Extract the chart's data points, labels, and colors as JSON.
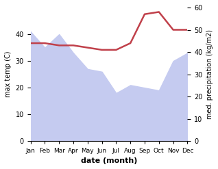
{
  "months": [
    "Jan",
    "Feb",
    "Mar",
    "Apr",
    "May",
    "Jun",
    "Jul",
    "Aug",
    "Sep",
    "Oct",
    "Nov",
    "Dec"
  ],
  "x": [
    0,
    1,
    2,
    3,
    4,
    5,
    6,
    7,
    8,
    9,
    10,
    11
  ],
  "max_temp": [
    41,
    35,
    40,
    33,
    27,
    26,
    18,
    21,
    20,
    19,
    30,
    33
  ],
  "precipitation": [
    44,
    44,
    43,
    43,
    42,
    41,
    41,
    44,
    57,
    58,
    50,
    50
  ],
  "temp_color": "#c0404a",
  "precip_color": "#aab4e8",
  "precip_fill_color": "#c5cbf0",
  "title": "",
  "xlabel": "date (month)",
  "ylabel_left": "max temp (C)",
  "ylabel_right": "med. precipitation (kg/m2)",
  "ylim_left": [
    0,
    50
  ],
  "ylim_right": [
    0,
    60
  ],
  "yticks_left": [
    0,
    10,
    20,
    30,
    40
  ],
  "yticks_right": [
    0,
    10,
    20,
    30,
    40,
    50,
    60
  ],
  "bg_color": "#ffffff"
}
